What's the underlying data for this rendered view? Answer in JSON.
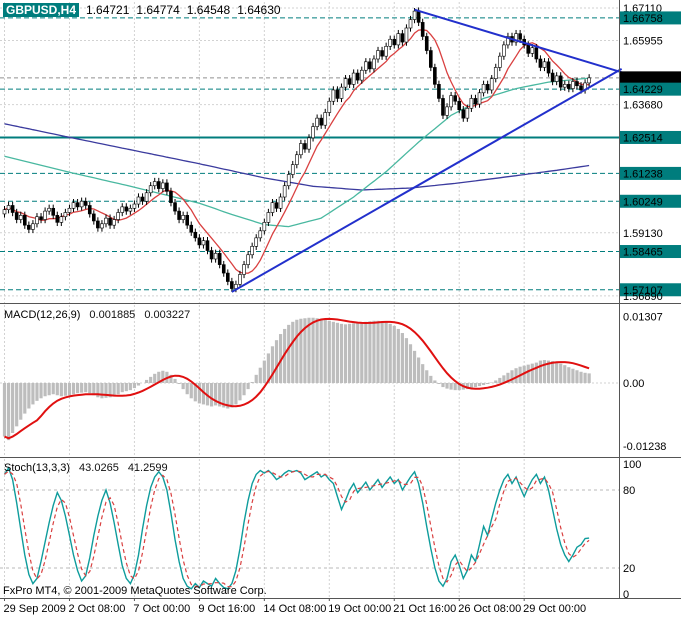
{
  "header": {
    "symbol": "GBPUSD,H4",
    "open": "1.64721",
    "high": "1.64774",
    "low": "1.64548",
    "close": "1.64630"
  },
  "footer": {
    "copyright": "FxPro MT4, © 2001-2009 MetaQuotes Software Corp."
  },
  "colors": {
    "teal": "#007d7d",
    "grid": "#d2d2d2",
    "trendline": "#2230cc",
    "ma_slow": "#3b3b9e",
    "ma_mid": "#49b8a0",
    "ma_fast": "#d94040",
    "macd_hist": "#bdbdbd",
    "macd_signal": "#e01010",
    "stoch_main": "#0e9c9c",
    "stoch_signal": "#d94040",
    "current_bg": "#000000"
  },
  "chart_data": [
    {
      "type": "candlestick",
      "title": "GBPUSD H4",
      "ylim": [
        1.5653,
        1.6725
      ],
      "x_tick_labels": [
        {
          "index": 0,
          "label": "29 Sep 2009"
        },
        {
          "index": 16,
          "label": "2 Oct 08:00"
        },
        {
          "index": 32,
          "label": "7 Oct 00:00"
        },
        {
          "index": 48,
          "label": "9 Oct 16:00"
        },
        {
          "index": 64,
          "label": "14 Oct 08:00"
        },
        {
          "index": 80,
          "label": "19 Oct 00:00"
        },
        {
          "index": 96,
          "label": "21 Oct 16:00"
        },
        {
          "index": 112,
          "label": "26 Oct 08:00"
        },
        {
          "index": 128,
          "label": "29 Oct 00:00"
        }
      ],
      "candles": {
        "first_open": 1.598,
        "wick": 0.0013,
        "spike_high": {
          "index": 101,
          "price": 1.6711
        },
        "spike_low": {
          "index": 56,
          "price": 1.5703
        },
        "closes": [
          1.5995,
          1.601,
          1.5985,
          1.596,
          1.5975,
          1.594,
          1.5925,
          1.5945,
          1.597,
          1.596,
          1.599,
          1.6,
          1.5975,
          1.595,
          1.597,
          1.5985,
          1.6,
          1.602,
          1.6005,
          1.6025,
          1.601,
          1.598,
          1.5955,
          1.593,
          1.5945,
          1.5965,
          1.594,
          1.596,
          1.5985,
          1.6005,
          1.599,
          1.6,
          1.6015,
          1.604,
          1.6025,
          1.6055,
          1.608,
          1.6095,
          1.607,
          1.609,
          1.606,
          1.602,
          1.599,
          1.596,
          1.5975,
          1.594,
          1.5915,
          1.5895,
          1.587,
          1.5885,
          1.585,
          1.582,
          1.584,
          1.58,
          1.577,
          1.574,
          1.5715,
          1.573,
          1.5765,
          1.58,
          1.5835,
          1.5865,
          1.5895,
          1.592,
          1.595,
          1.5985,
          1.602,
          1.6,
          1.604,
          1.608,
          1.612,
          1.6155,
          1.619,
          1.623,
          1.621,
          1.625,
          1.629,
          1.632,
          1.6295,
          1.634,
          1.638,
          1.642,
          1.639,
          1.643,
          1.646,
          1.644,
          1.648,
          1.6455,
          1.649,
          1.652,
          1.6495,
          1.653,
          1.656,
          1.654,
          1.6575,
          1.66,
          1.658,
          1.662,
          1.659,
          1.664,
          1.667,
          1.67,
          1.666,
          1.661,
          1.656,
          1.65,
          1.644,
          1.639,
          1.633,
          1.636,
          1.64,
          1.638,
          1.635,
          1.632,
          1.6355,
          1.639,
          1.637,
          1.641,
          1.644,
          1.642,
          1.646,
          1.65,
          1.654,
          1.658,
          1.661,
          1.659,
          1.662,
          1.66,
          1.658,
          1.655,
          1.657,
          1.653,
          1.65,
          1.652,
          1.648,
          1.645,
          1.647,
          1.643,
          1.644,
          1.6425,
          1.645,
          1.6435,
          1.642,
          1.6445,
          1.6463
        ]
      },
      "grid_prices": [
        1.6711,
        1.65955,
        1.6368,
        1.5913,
        1.5689
      ],
      "levels": [
        {
          "price": 1.66758,
          "style": "dashed"
        },
        {
          "price": 1.64229,
          "style": "dashed"
        },
        {
          "price": 1.62514,
          "style": "solid"
        },
        {
          "price": 1.61238,
          "style": "dashed"
        },
        {
          "price": 1.60249,
          "style": "dashed"
        },
        {
          "price": 1.58465,
          "style": "dashed"
        },
        {
          "price": 1.57107,
          "style": "dashed"
        }
      ],
      "current_price": 1.6463,
      "trendlines": [
        {
          "name": "ascending-support",
          "from": [
            56,
            1.5703
          ],
          "to": [
            152,
            1.6495
          ]
        },
        {
          "name": "descending-resistance",
          "from": [
            101,
            1.6705
          ],
          "to": [
            160,
            1.6448
          ]
        }
      ],
      "moving_averages": [
        {
          "name": "ma-slow",
          "color": "#3b3b9e",
          "points": [
            [
              0,
              1.63
            ],
            [
              16,
              1.6252
            ],
            [
              32,
              1.6205
            ],
            [
              48,
              1.6158
            ],
            [
              64,
              1.6108
            ],
            [
              76,
              1.6078
            ],
            [
              88,
              1.6065
            ],
            [
              100,
              1.6072
            ],
            [
              112,
              1.609
            ],
            [
              124,
              1.6112
            ],
            [
              136,
              1.6135
            ],
            [
              144,
              1.6152
            ]
          ]
        },
        {
          "name": "ma-mid",
          "color": "#49b8a0",
          "points": [
            [
              0,
              1.6185
            ],
            [
              16,
              1.6128
            ],
            [
              32,
              1.6075
            ],
            [
              48,
              1.6018
            ],
            [
              56,
              1.5978
            ],
            [
              64,
              1.5942
            ],
            [
              70,
              1.5935
            ],
            [
              78,
              1.5965
            ],
            [
              86,
              1.604
            ],
            [
              94,
              1.613
            ],
            [
              102,
              1.6235
            ],
            [
              110,
              1.633
            ],
            [
              118,
              1.639
            ],
            [
              126,
              1.6425
            ],
            [
              134,
              1.6448
            ],
            [
              144,
              1.6462
            ]
          ]
        },
        {
          "name": "ma-fast",
          "color": "#d94040",
          "sma_period": 8
        }
      ],
      "price_axis": {
        "labels": [
          {
            "text": "1.67110",
            "value": 1.6711,
            "style": "grid"
          },
          {
            "text": "1.66758",
            "value": 1.66758,
            "style": "level"
          },
          {
            "text": "1.65955",
            "value": 1.65955,
            "style": "grid"
          },
          {
            "text": "1.64630",
            "value": 1.6463,
            "style": "current"
          },
          {
            "text": "1.64229",
            "value": 1.64229,
            "style": "level"
          },
          {
            "text": "1.63680",
            "value": 1.6368,
            "style": "grid"
          },
          {
            "text": "1.62514",
            "value": 1.62514,
            "style": "level"
          },
          {
            "text": "1.61238",
            "value": 1.61238,
            "style": "level"
          },
          {
            "text": "1.60249",
            "value": 1.60249,
            "style": "level"
          },
          {
            "text": "1.59130",
            "value": 1.5913,
            "style": "grid"
          },
          {
            "text": "1.58465",
            "value": 1.58465,
            "style": "level"
          },
          {
            "text": "1.57107",
            "value": 1.57107,
            "style": "level"
          },
          {
            "text": "1.56890",
            "value": 1.5689,
            "style": "grid"
          }
        ]
      }
    },
    {
      "type": "macd",
      "label": "MACD(12,26,9)",
      "value_macd": "0.001885",
      "value_signal": "0.003227",
      "signal_sma_period": 9,
      "scale_labels": [
        {
          "text": "0.01307",
          "value": 0.01307
        },
        {
          "text": "0.00",
          "value": 0
        },
        {
          "text": "-0.01238",
          "value": -0.01238
        }
      ],
      "values": [
        -0.0105,
        -0.0112,
        -0.0098,
        -0.0085,
        -0.0072,
        -0.006,
        -0.005,
        -0.0042,
        -0.0035,
        -0.003,
        -0.0026,
        -0.0024,
        -0.0022,
        -0.0024,
        -0.0026,
        -0.0025,
        -0.0024,
        -0.0022,
        -0.002,
        -0.0019,
        -0.0018,
        -0.002,
        -0.0024,
        -0.0028,
        -0.003,
        -0.0029,
        -0.0028,
        -0.0026,
        -0.0022,
        -0.0018,
        -0.0016,
        -0.0014,
        -0.001,
        -0.0005,
        0.0,
        0.0006,
        0.0012,
        0.0018,
        0.0022,
        0.0024,
        0.0022,
        0.0016,
        0.0008,
        -0.0002,
        -0.0012,
        -0.0022,
        -0.003,
        -0.0036,
        -0.004,
        -0.0042,
        -0.0044,
        -0.0046,
        -0.0044,
        -0.0046,
        -0.0048,
        -0.005,
        -0.0048,
        -0.0042,
        -0.0034,
        -0.0024,
        -0.0012,
        0.0002,
        0.0016,
        0.003,
        0.0044,
        0.0058,
        0.0072,
        0.0084,
        0.0096,
        0.0106,
        0.0114,
        0.012,
        0.0124,
        0.0126,
        0.0127,
        0.0128,
        0.0128,
        0.0127,
        0.0126,
        0.0124,
        0.0122,
        0.012,
        0.0118,
        0.0116,
        0.0115,
        0.0116,
        0.0117,
        0.0118,
        0.0119,
        0.012,
        0.0121,
        0.0122,
        0.0122,
        0.0121,
        0.0119,
        0.0116,
        0.0112,
        0.0106,
        0.0098,
        0.0088,
        0.0076,
        0.0063,
        0.005,
        0.0037,
        0.0025,
        0.0014,
        0.0005,
        -0.0002,
        -0.0008,
        -0.0011,
        -0.0013,
        -0.0014,
        -0.0014,
        -0.0013,
        -0.0012,
        -0.001,
        -0.0008,
        -0.0006,
        -0.0004,
        -0.0002,
        0.0001,
        0.0005,
        0.001,
        0.0015,
        0.002,
        0.0025,
        0.0029,
        0.0032,
        0.0034,
        0.0036,
        0.0038,
        0.004,
        0.0044,
        0.0045,
        0.0044,
        0.0043,
        0.0041,
        0.0038,
        0.0035,
        0.0031,
        0.0028,
        0.0025,
        0.0022,
        0.002,
        0.001885
      ]
    },
    {
      "type": "stochastic",
      "label": "Stoch(13,3,3)",
      "value_main": "43.0265",
      "value_signal": "41.2599",
      "signal_sma_period": 3,
      "levels": [
        80,
        20
      ],
      "scale_labels": [
        {
          "text": "100",
          "value": 100
        },
        {
          "text": "80",
          "value": 80
        },
        {
          "text": "20",
          "value": 20
        },
        {
          "text": "0",
          "value": 0
        }
      ],
      "values": [
        92,
        97,
        88,
        70,
        50,
        30,
        15,
        8,
        12,
        25,
        40,
        55,
        68,
        78,
        72,
        60,
        45,
        30,
        18,
        10,
        14,
        28,
        45,
        60,
        72,
        80,
        70,
        55,
        38,
        22,
        12,
        8,
        15,
        30,
        50,
        68,
        82,
        90,
        94,
        90,
        80,
        62,
        42,
        25,
        12,
        6,
        4,
        8,
        5,
        10,
        8,
        6,
        12,
        8,
        5,
        4,
        8,
        18,
        35,
        55,
        72,
        85,
        92,
        95,
        93,
        95,
        92,
        88,
        90,
        93,
        95,
        94,
        95,
        93,
        88,
        90,
        92,
        94,
        90,
        92,
        88,
        85,
        75,
        65,
        72,
        80,
        85,
        78,
        82,
        86,
        80,
        84,
        88,
        82,
        86,
        90,
        85,
        88,
        80,
        85,
        90,
        94,
        85,
        70,
        52,
        35,
        20,
        10,
        6,
        12,
        25,
        30,
        22,
        12,
        18,
        30,
        25,
        38,
        52,
        45,
        58,
        70,
        80,
        88,
        92,
        85,
        90,
        82,
        75,
        82,
        88,
        92,
        85,
        90,
        80,
        65,
        50,
        38,
        30,
        25,
        30,
        36,
        38,
        42.7,
        43.03
      ]
    }
  ]
}
